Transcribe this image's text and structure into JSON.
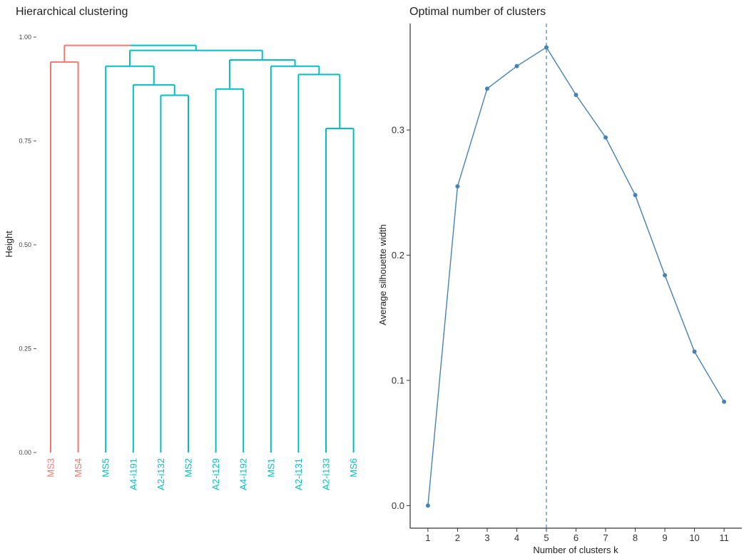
{
  "chart_data": [
    {
      "type": "dendrogram",
      "title": "Hierarchical clustering",
      "ylabel": "Height",
      "xlabel": "",
      "ylim": [
        0,
        1.0
      ],
      "yticks": [
        {
          "value": 0.0,
          "label": "0.00"
        },
        {
          "value": 0.25,
          "label": "0.25"
        },
        {
          "value": 0.5,
          "label": "0.50"
        },
        {
          "value": 0.75,
          "label": "0.75"
        },
        {
          "value": 1.0,
          "label": "1.00"
        }
      ],
      "cluster_colors": {
        "red": "#F8766D",
        "teal": "#00BFC4"
      },
      "leaves": [
        {
          "label": "MS3",
          "cluster": "red"
        },
        {
          "label": "MS4",
          "cluster": "red"
        },
        {
          "label": "MS5",
          "cluster": "teal"
        },
        {
          "label": "A4-i191",
          "cluster": "teal"
        },
        {
          "label": "A2-i132",
          "cluster": "teal"
        },
        {
          "label": "MS2",
          "cluster": "teal"
        },
        {
          "label": "A2-i129",
          "cluster": "teal"
        },
        {
          "label": "A4-i192",
          "cluster": "teal"
        },
        {
          "label": "MS1",
          "cluster": "teal"
        },
        {
          "label": "A2-i131",
          "cluster": "teal"
        },
        {
          "label": "A2-i133",
          "cluster": "teal"
        },
        {
          "label": "MS6",
          "cluster": "teal"
        }
      ],
      "merges": [
        {
          "id": "n1",
          "left": "L4",
          "right": "L5",
          "height": 0.86,
          "cluster": "teal"
        },
        {
          "id": "n2",
          "left": "L3",
          "right": "n1",
          "height": 0.885,
          "cluster": "teal"
        },
        {
          "id": "n3",
          "left": "L2",
          "right": "n2",
          "height": 0.93,
          "cluster": "teal"
        },
        {
          "id": "n4",
          "left": "L0",
          "right": "L1",
          "height": 0.94,
          "cluster": "red"
        },
        {
          "id": "n5",
          "left": "L6",
          "right": "L7",
          "height": 0.875,
          "cluster": "teal"
        },
        {
          "id": "n6",
          "left": "L10",
          "right": "L11",
          "height": 0.78,
          "cluster": "teal"
        },
        {
          "id": "n7",
          "left": "L9",
          "right": "n6",
          "height": 0.91,
          "cluster": "teal"
        },
        {
          "id": "n8",
          "left": "L8",
          "right": "n7",
          "height": 0.93,
          "cluster": "teal"
        },
        {
          "id": "n9",
          "left": "n5",
          "right": "n8",
          "height": 0.945,
          "cluster": "teal"
        },
        {
          "id": "n10",
          "left": "n3",
          "right": "n9",
          "height": 0.968,
          "cluster": "teal"
        },
        {
          "id": "n11",
          "left": "n4",
          "right": "n10",
          "height": 0.98,
          "cluster": "mixed"
        }
      ]
    },
    {
      "type": "line",
      "title": "Optimal number of clusters",
      "xlabel": "Number of clusters k",
      "ylabel": "Average silhouette width",
      "x": [
        1,
        2,
        3,
        4,
        5,
        6,
        7,
        8,
        9,
        10,
        11
      ],
      "y": [
        0.0,
        0.255,
        0.333,
        0.351,
        0.366,
        0.328,
        0.294,
        0.248,
        0.184,
        0.123,
        0.083
      ],
      "xlim": [
        0.4,
        11.6
      ],
      "ylim": [
        -0.018,
        0.385
      ],
      "yticks": [
        {
          "value": 0.0,
          "label": "0.0"
        },
        {
          "value": 0.1,
          "label": "0.1"
        },
        {
          "value": 0.2,
          "label": "0.2"
        },
        {
          "value": 0.3,
          "label": "0.3"
        }
      ],
      "xticks": [
        "1",
        "2",
        "3",
        "4",
        "5",
        "6",
        "7",
        "8",
        "9",
        "10",
        "11"
      ],
      "optimal_k": 5,
      "color": "#4682B4"
    }
  ]
}
